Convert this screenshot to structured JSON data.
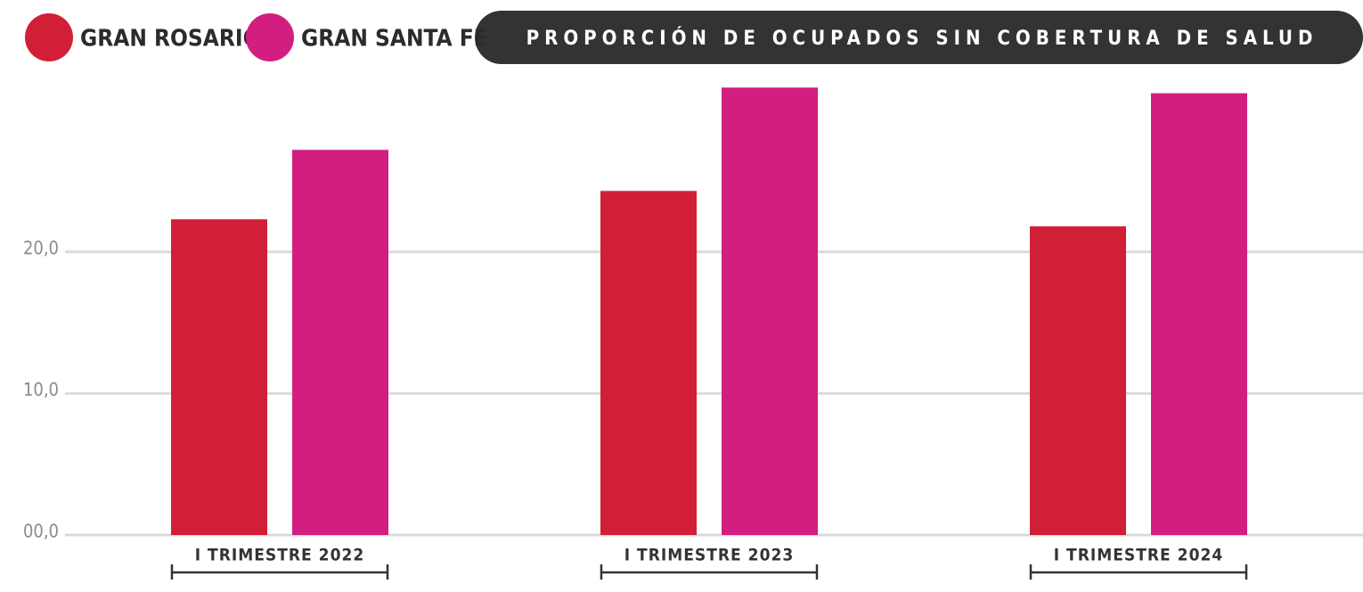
{
  "chart_data": {
    "type": "bar",
    "title": "PROPORCIÓN DE OCUPADOS SIN COBERTURA DE SALUD",
    "categories": [
      "I TRIMESTRE 2022",
      "I TRIMESTRE 2023",
      "I TRIMESTRE 2024"
    ],
    "series": [
      {
        "name": "GRAN ROSARIO",
        "color": "#d01f36",
        "values": [
          22.3,
          24.3,
          21.8
        ]
      },
      {
        "name": "GRAN SANTA FE",
        "color": "#d21e80",
        "values": [
          27.2,
          31.6,
          31.2
        ]
      }
    ],
    "ylim": [
      0,
      32
    ],
    "yticks": [
      {
        "value": 0,
        "label": "00,0"
      },
      {
        "value": 10,
        "label": "10,0"
      },
      {
        "value": 20,
        "label": "20,0"
      }
    ],
    "grid": true
  }
}
